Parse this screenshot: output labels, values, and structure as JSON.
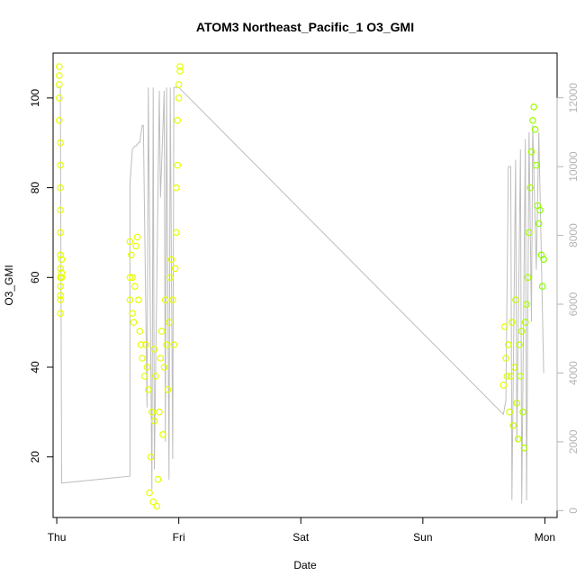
{
  "chart_data": {
    "type": "scatter",
    "title": "ATOM3 Northeast_Pacific_1 O3_GMI",
    "xlabel": "Date",
    "ylabel": "O3_GMI",
    "x_ticks": [
      "Thu",
      "Fri",
      "Sat",
      "Sun",
      "Mon"
    ],
    "xlim": [
      -0.03,
      4.1
    ],
    "ylim": [
      6.5,
      110
    ],
    "y_ticks": [
      20,
      40,
      60,
      80,
      100
    ],
    "y2lim": [
      -200,
      13300
    ],
    "y2_ticks": [
      0,
      2000,
      4000,
      6000,
      8000,
      10000,
      12000
    ],
    "grid": false,
    "colors": {
      "altitude_line": "#bebebe",
      "series_start": "#e6ff00",
      "series_end": "#80ff00"
    },
    "series": [
      {
        "role": "o3_points",
        "x": [
          0.02,
          0.02,
          0.02,
          0.02,
          0.02,
          0.03,
          0.03,
          0.03,
          0.03,
          0.03,
          0.03,
          0.03,
          0.03,
          0.03,
          0.03,
          0.03,
          0.03,
          0.03,
          0.04,
          0.04,
          0.04,
          0.6,
          0.6,
          0.6,
          0.61,
          0.62,
          0.62,
          0.63,
          0.64,
          0.65,
          0.66,
          0.67,
          0.68,
          0.69,
          0.7,
          0.72,
          0.73,
          0.74,
          0.75,
          0.76,
          0.77,
          0.78,
          0.79,
          0.8,
          0.8,
          0.81,
          0.82,
          0.83,
          0.84,
          0.85,
          0.86,
          0.87,
          0.88,
          0.89,
          0.9,
          0.91,
          0.92,
          0.93,
          0.94,
          0.95,
          0.96,
          0.97,
          0.98,
          0.98,
          0.99,
          0.99,
          1.0,
          1.0,
          1.01,
          1.01,
          3.66,
          3.67,
          3.68,
          3.69,
          3.7,
          3.71,
          3.72,
          3.73,
          3.74,
          3.75,
          3.76,
          3.77,
          3.78,
          3.79,
          3.8,
          3.81,
          3.82,
          3.83,
          3.84,
          3.85,
          3.86,
          3.87,
          3.88,
          3.89,
          3.9,
          3.91,
          3.92,
          3.93,
          3.94,
          3.95,
          3.96,
          3.97,
          3.98,
          3.99
        ],
        "y": [
          105,
          107,
          103,
          100,
          95,
          90,
          85,
          80,
          75,
          70,
          65,
          60,
          55,
          52,
          56,
          60,
          58,
          62,
          64,
          60,
          61,
          68,
          60,
          55,
          65,
          52,
          60,
          50,
          58,
          67,
          69,
          55,
          48,
          45,
          42,
          38,
          45,
          40,
          35,
          12,
          20,
          30,
          10,
          28,
          44,
          38,
          9,
          15,
          30,
          42,
          48,
          25,
          40,
          55,
          45,
          35,
          50,
          60,
          64,
          55,
          45,
          62,
          70,
          80,
          95,
          85,
          100,
          103,
          106,
          107,
          36,
          49,
          42,
          38,
          45,
          30,
          38,
          50,
          27,
          40,
          55,
          32,
          24,
          45,
          38,
          48,
          30,
          22,
          50,
          54,
          60,
          70,
          80,
          88,
          95,
          98,
          93,
          85,
          76,
          72,
          75,
          65,
          58,
          64
        ]
      },
      {
        "role": "altitude_line",
        "x": [
          0.0,
          0.01,
          0.02,
          0.03,
          0.04,
          0.6,
          0.6,
          0.62,
          0.62,
          0.64,
          0.65,
          0.67,
          0.68,
          0.7,
          0.71,
          0.74,
          0.75,
          0.78,
          0.79,
          0.8,
          0.84,
          0.85,
          0.88,
          0.89,
          0.9,
          0.92,
          0.93,
          0.95,
          0.96,
          0.98,
          0.99,
          1.0,
          1.0,
          3.66,
          3.68,
          3.7,
          3.72,
          3.73,
          3.76,
          3.77,
          3.8,
          3.81,
          3.84,
          3.85,
          3.87,
          3.89,
          3.9,
          3.93,
          3.95,
          3.97,
          3.99
        ],
        "y": [
          12300,
          12300,
          12300,
          12300,
          800,
          1000,
          9500,
          10500,
          10500,
          10600,
          10600,
          10700,
          10700,
          11200,
          11200,
          3000,
          12300,
          600,
          12300,
          1200,
          12200,
          9100,
          12200,
          2000,
          12300,
          900,
          12300,
          1500,
          12300,
          12300,
          12300,
          12300,
          12300,
          2800,
          3200,
          10000,
          10000,
          300,
          10200,
          2000,
          10500,
          200,
          10800,
          300,
          11000,
          5500,
          11200,
          7000,
          11000,
          7500,
          4000
        ]
      }
    ]
  }
}
